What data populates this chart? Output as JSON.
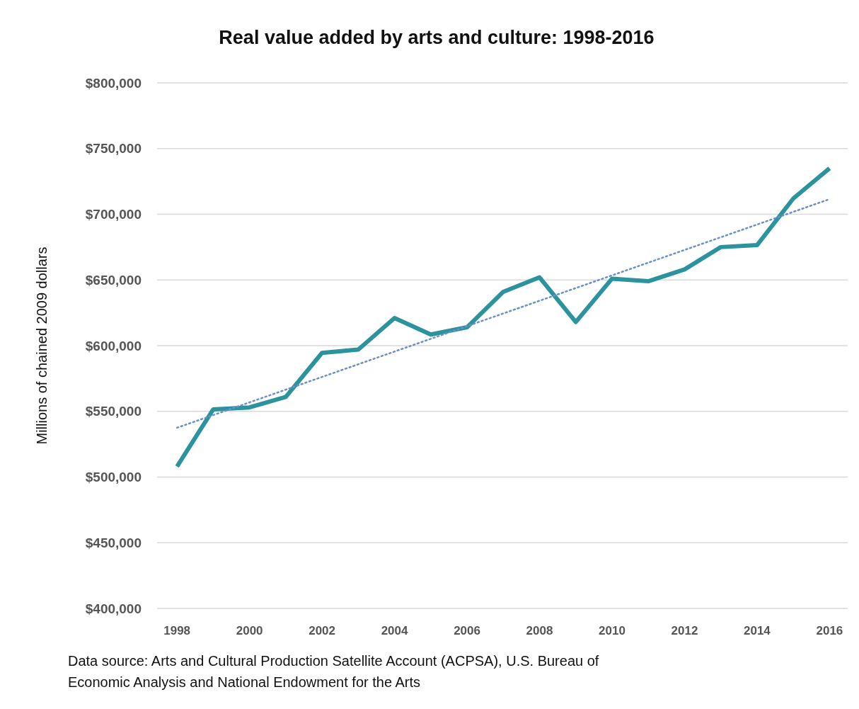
{
  "chart_data": {
    "type": "line",
    "title": "Real value added by arts and culture: 1998-2016",
    "ylabel": "Millions of chained 2009 dollars",
    "annotations": [
      "Data source: Arts and Cultural Production Satellite Account (ACPSA), U.S. Bureau of Economic Analysis and National Endowment for the Arts"
    ],
    "x": [
      1998,
      1999,
      2000,
      2001,
      2002,
      2003,
      2004,
      2005,
      2006,
      2007,
      2008,
      2009,
      2010,
      2011,
      2012,
      2013,
      2014,
      2015,
      2016
    ],
    "series": [
      {
        "color": "#2a939e",
        "values": [
          508000,
          551500,
          553000,
          561000,
          594500,
          597000,
          621000,
          608500,
          614000,
          641000,
          652000,
          618000,
          651000,
          649000,
          658000,
          675000,
          676500,
          712000,
          735000
        ]
      },
      {
        "type": "line",
        "x": [
          1998,
          2016
        ],
        "values": [
          537500,
          711500
        ],
        "color": "#6a8fc9",
        "line_style": "dotted"
      }
    ],
    "xlim": [
      1997.45,
      2016.5
    ],
    "xticks": [
      1998,
      2000,
      2002,
      2004,
      2006,
      2008,
      2010,
      2012,
      2014,
      2016
    ],
    "ylim": [
      400000,
      800000
    ],
    "yticks": [
      {
        "value": 400000,
        "label": "$400,000"
      },
      {
        "value": 450000,
        "label": "$450,000"
      },
      {
        "value": 500000,
        "label": "$500,000"
      },
      {
        "value": 550000,
        "label": "$550,000"
      },
      {
        "value": 600000,
        "label": "$600,000"
      },
      {
        "value": 650000,
        "label": "$650,000"
      },
      {
        "value": 700000,
        "label": "$700,000"
      },
      {
        "value": 750000,
        "label": "$750,000"
      },
      {
        "value": 800000,
        "label": "$800,000"
      }
    ],
    "grid": "y",
    "marker": "none",
    "line_style": "solid"
  }
}
